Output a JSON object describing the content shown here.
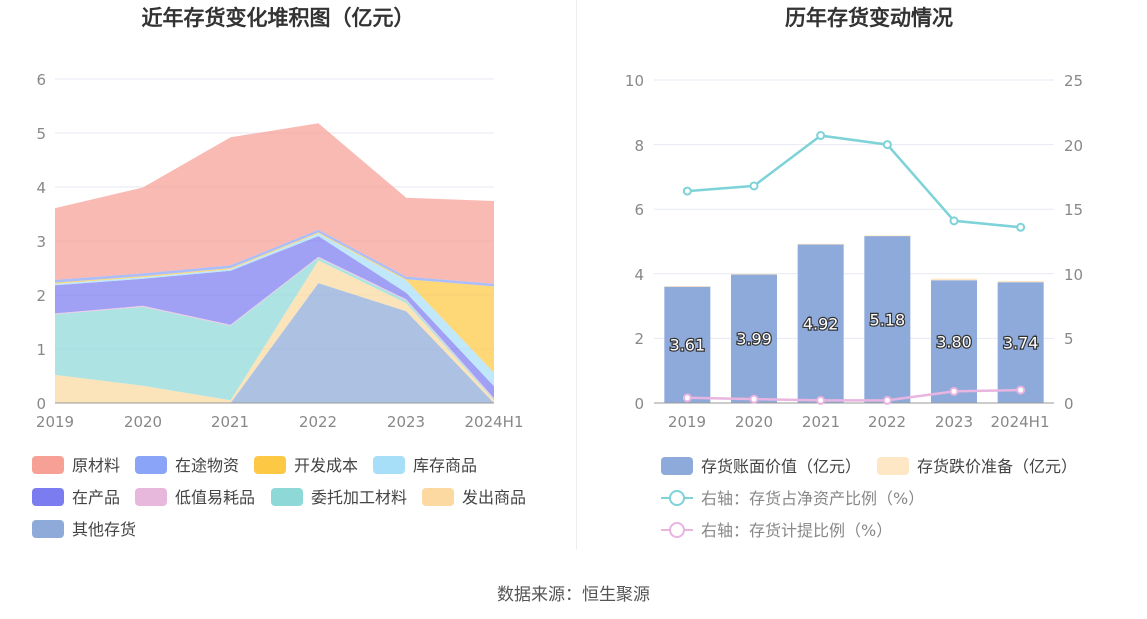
{
  "source": "数据来源：恒生聚源",
  "charts": {
    "stack": {
      "title": "近年存货变化堆积图（亿元）",
      "y_ticks": [
        "0",
        "1",
        "2",
        "3",
        "4",
        "5",
        "6"
      ],
      "x_ticks": [
        "2019",
        "2020",
        "2021",
        "2022",
        "2023",
        "2024H1"
      ]
    },
    "bar": {
      "title": "历年存货变动情况",
      "left_ticks": [
        "0",
        "2",
        "4",
        "6",
        "8",
        "10"
      ],
      "right_ticks": [
        "0",
        "5",
        "10",
        "15",
        "20",
        "25"
      ],
      "x_ticks": [
        "2019",
        "2020",
        "2021",
        "2022",
        "2023",
        "2024H1"
      ]
    }
  },
  "chart_data": [
    {
      "type": "area",
      "title": "近年存货变化堆积图（亿元）",
      "stacked": true,
      "categories": [
        "2019",
        "2020",
        "2021",
        "2022",
        "2023",
        "2024H1"
      ],
      "ylim": [
        0,
        6
      ],
      "grid": true,
      "legend": "bottom",
      "series": [
        {
          "name": "其他存货",
          "color": "#8eaad8",
          "values": [
            0,
            0,
            0,
            2.22,
            1.7,
            0
          ]
        },
        {
          "name": "发出商品",
          "color": "#fbd9a0",
          "values": [
            0.52,
            0.32,
            0.05,
            0.42,
            0.15,
            0.05
          ]
        },
        {
          "name": "委托加工材料",
          "color": "#8ed8d8",
          "values": [
            1.12,
            1.46,
            1.38,
            0.05,
            0.05,
            0.02
          ]
        },
        {
          "name": "低值易耗品",
          "color": "#e8b8dc",
          "values": [
            0.02,
            0.02,
            0.02,
            0.02,
            0.02,
            0.02
          ]
        },
        {
          "name": "在产品",
          "color": "#7b7cf0",
          "values": [
            0.52,
            0.5,
            1.0,
            0.38,
            0.12,
            0.22
          ]
        },
        {
          "name": "库存商品",
          "color": "#a8dff8",
          "values": [
            0.03,
            0.03,
            0.03,
            0.05,
            0.23,
            0.25
          ]
        },
        {
          "name": "开发成本",
          "color": "#fdc843",
          "values": [
            0.02,
            0.02,
            0.02,
            0.02,
            0.02,
            1.6
          ]
        },
        {
          "name": "在途物资",
          "color": "#8aa5f8",
          "values": [
            0.05,
            0.05,
            0.05,
            0.05,
            0.05,
            0.05
          ]
        },
        {
          "name": "原材料",
          "color": "#f7a096",
          "values": [
            1.33,
            1.59,
            2.37,
            1.97,
            1.46,
            1.53
          ]
        }
      ],
      "legend_order": [
        "原材料",
        "在途物资",
        "开发成本",
        "库存商品",
        "在产品",
        "低值易耗品",
        "委托加工材料",
        "发出商品",
        "其他存货"
      ]
    },
    {
      "type": "bar",
      "title": "历年存货变动情况",
      "categories": [
        "2019",
        "2020",
        "2021",
        "2022",
        "2023",
        "2024H1"
      ],
      "ylim": [
        0,
        10
      ],
      "y2lim": [
        0,
        25
      ],
      "grid": true,
      "legend": "bottom",
      "bars": [
        {
          "name": "存货账面价值（亿元）",
          "color": "#8eaadb",
          "values": [
            3.61,
            3.99,
            4.92,
            5.18,
            3.8,
            3.74
          ],
          "labels": [
            "3.61",
            "3.99",
            "4.92",
            "5.18",
            "3.80",
            "3.74"
          ]
        },
        {
          "name": "存货跌价准备（亿元）",
          "color": "#fde7c4",
          "values": [
            0.01,
            0.01,
            0.01,
            0.01,
            0.05,
            0.04
          ]
        }
      ],
      "lines": [
        {
          "name": "右轴：存货占净资产比例（%）",
          "color": "#7dd3d8",
          "axis": "right",
          "values": [
            16.4,
            16.8,
            20.7,
            20.0,
            14.1,
            13.6
          ]
        },
        {
          "name": "右轴：存货计提比例（%）",
          "color": "#e8b4e0",
          "axis": "right",
          "values": [
            0.4,
            0.3,
            0.2,
            0.2,
            0.9,
            1.0
          ]
        }
      ]
    }
  ]
}
